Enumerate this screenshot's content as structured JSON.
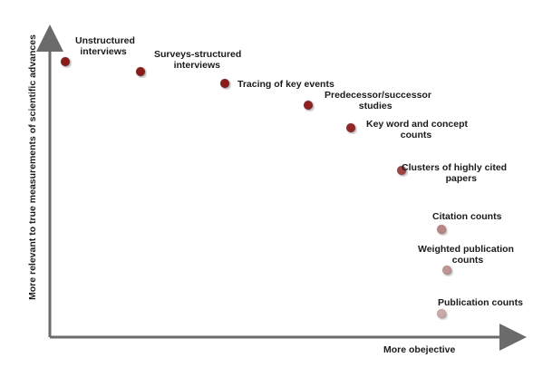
{
  "chart_data": {
    "type": "scatter",
    "title": "",
    "xlabel": "More obejective",
    "ylabel": "More relevant to true measurements of scientific advances",
    "grid": false,
    "legend": "none",
    "colors": {
      "dark_marker": "#8b1a1a",
      "light_marker": "#c9a9a9",
      "axis": "#6b6b6b",
      "text": "#1a1a1a"
    },
    "points": [
      {
        "label_lines": [
          "Unstructured",
          "interviews"
        ],
        "tone": 0
      },
      {
        "label_lines": [
          "Surveys-structured",
          "interviews"
        ],
        "tone": 0
      },
      {
        "label_lines": [
          "Tracing of key events"
        ],
        "tone": 0
      },
      {
        "label_lines": [
          "Predecessor/successor",
          "studies"
        ],
        "tone": 0.05
      },
      {
        "label_lines": [
          "Key word and concept",
          "counts"
        ],
        "tone": 0.1
      },
      {
        "label_lines": [
          "Clusters of highly cited",
          "papers"
        ],
        "tone": 0.3
      },
      {
        "label_lines": [
          "Citation counts"
        ],
        "tone": 0.75
      },
      {
        "label_lines": [
          "Weighted publication",
          "counts"
        ],
        "tone": 0.85
      },
      {
        "label_lines": [
          "Publication counts"
        ],
        "tone": 1
      }
    ]
  }
}
